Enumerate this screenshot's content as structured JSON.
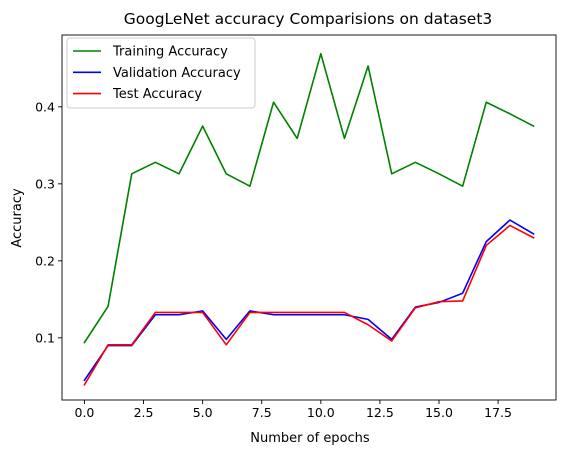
{
  "chart_data": {
    "type": "line",
    "title": "GoogLeNet accuracy Comparisions on dataset3",
    "xlabel": "Number of epochs",
    "ylabel": "Accuracy",
    "xlim": [
      -0.95,
      19.95
    ],
    "ylim": [
      0.0193,
      0.4933
    ],
    "x_ticks": [
      0.0,
      2.5,
      5.0,
      7.5,
      10.0,
      12.5,
      15.0,
      17.5
    ],
    "x_tick_labels": [
      "0.0",
      "2.5",
      "5.0",
      "7.5",
      "10.0",
      "12.5",
      "15.0",
      "17.5"
    ],
    "y_ticks": [
      0.1,
      0.2,
      0.3,
      0.4
    ],
    "y_tick_labels": [
      "0.1",
      "0.2",
      "0.3",
      "0.4"
    ],
    "grid": false,
    "legend_position": "top-left",
    "x": [
      0,
      1,
      2,
      3,
      4,
      5,
      6,
      7,
      8,
      9,
      10,
      11,
      12,
      13,
      14,
      15,
      16,
      17,
      18,
      19
    ],
    "series": [
      {
        "name": "Training Accuracy",
        "color": "#008000",
        "values": [
          0.094,
          0.141,
          0.313,
          0.328,
          0.313,
          0.375,
          0.313,
          0.297,
          0.406,
          0.359,
          0.469,
          0.359,
          0.453,
          0.313,
          0.328,
          0.313,
          0.297,
          0.406,
          0.391,
          0.375
        ]
      },
      {
        "name": "Validation Accuracy",
        "color": "#0000ff",
        "values": [
          0.045,
          0.09,
          0.09,
          0.13,
          0.13,
          0.135,
          0.098,
          0.135,
          0.13,
          0.13,
          0.13,
          0.13,
          0.124,
          0.098,
          0.14,
          0.146,
          0.158,
          0.225,
          0.253,
          0.235
        ]
      },
      {
        "name": "Test Accuracy",
        "color": "#ff0000",
        "values": [
          0.039,
          0.091,
          0.091,
          0.133,
          0.133,
          0.133,
          0.091,
          0.133,
          0.133,
          0.133,
          0.133,
          0.133,
          0.117,
          0.096,
          0.139,
          0.147,
          0.148,
          0.22,
          0.246,
          0.23
        ]
      }
    ]
  }
}
